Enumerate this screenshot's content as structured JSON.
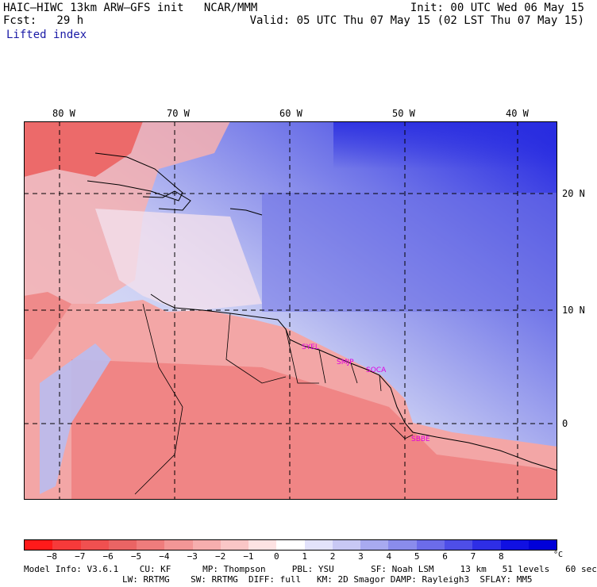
{
  "header": {
    "title": "HAIC–HIWC 13km ARW–GFS init   NCAR/MMM",
    "fcst": "Fcst:   29 h",
    "field": "Lifted index",
    "init": "Init: 00 UTC Wed 06 May 15",
    "valid": "Valid: 05 UTC Thu 07 May 15 (02 LST Thu 07 May 15)"
  },
  "map": {
    "lon_labels": [
      "80 W",
      "70 W",
      "60 W",
      "50 W",
      "40 W"
    ],
    "lat_labels": [
      "20 N",
      "10 N",
      "0"
    ],
    "stations": [
      "SYEL",
      "SMJP",
      "SOCA",
      "SBBE"
    ],
    "colors": {
      "ocean_background": "#dde2f8",
      "land_background": "#f3aaaa",
      "coast_lines": "#000000",
      "grid_lines": "#000000"
    }
  },
  "colorbar": {
    "labels": [
      "−8",
      "−7",
      "−6",
      "−5",
      "−4",
      "−3",
      "−2",
      "−1",
      "0",
      "1",
      "2",
      "3",
      "4",
      "5",
      "6",
      "7",
      "8"
    ],
    "unit": "°C",
    "colors": [
      "#ff1a1a",
      "#f63a3a",
      "#f05050",
      "#ea6464",
      "#ef7c7c",
      "#f39696",
      "#f6aeae",
      "#fac6c6",
      "#fde2e2",
      "#ffffff",
      "#e2e2fb",
      "#c8c8f4",
      "#a8aaf0",
      "#8a8cec",
      "#6c6cea",
      "#4e4ee8",
      "#2e2ee6",
      "#1010e2",
      "#0000d8"
    ]
  },
  "model_info": {
    "line1": "Model Info: V3.6.1    CU: KF      MP: Thompson     PBL: YSU       SF: Noah LSM     13 km   51 levels   60 sec",
    "line2": "LW: RRTMG    SW: RRTMG  DIFF: full   KM: 2D Smagor DAMP: Rayleigh3  SFLAY: MM5"
  }
}
